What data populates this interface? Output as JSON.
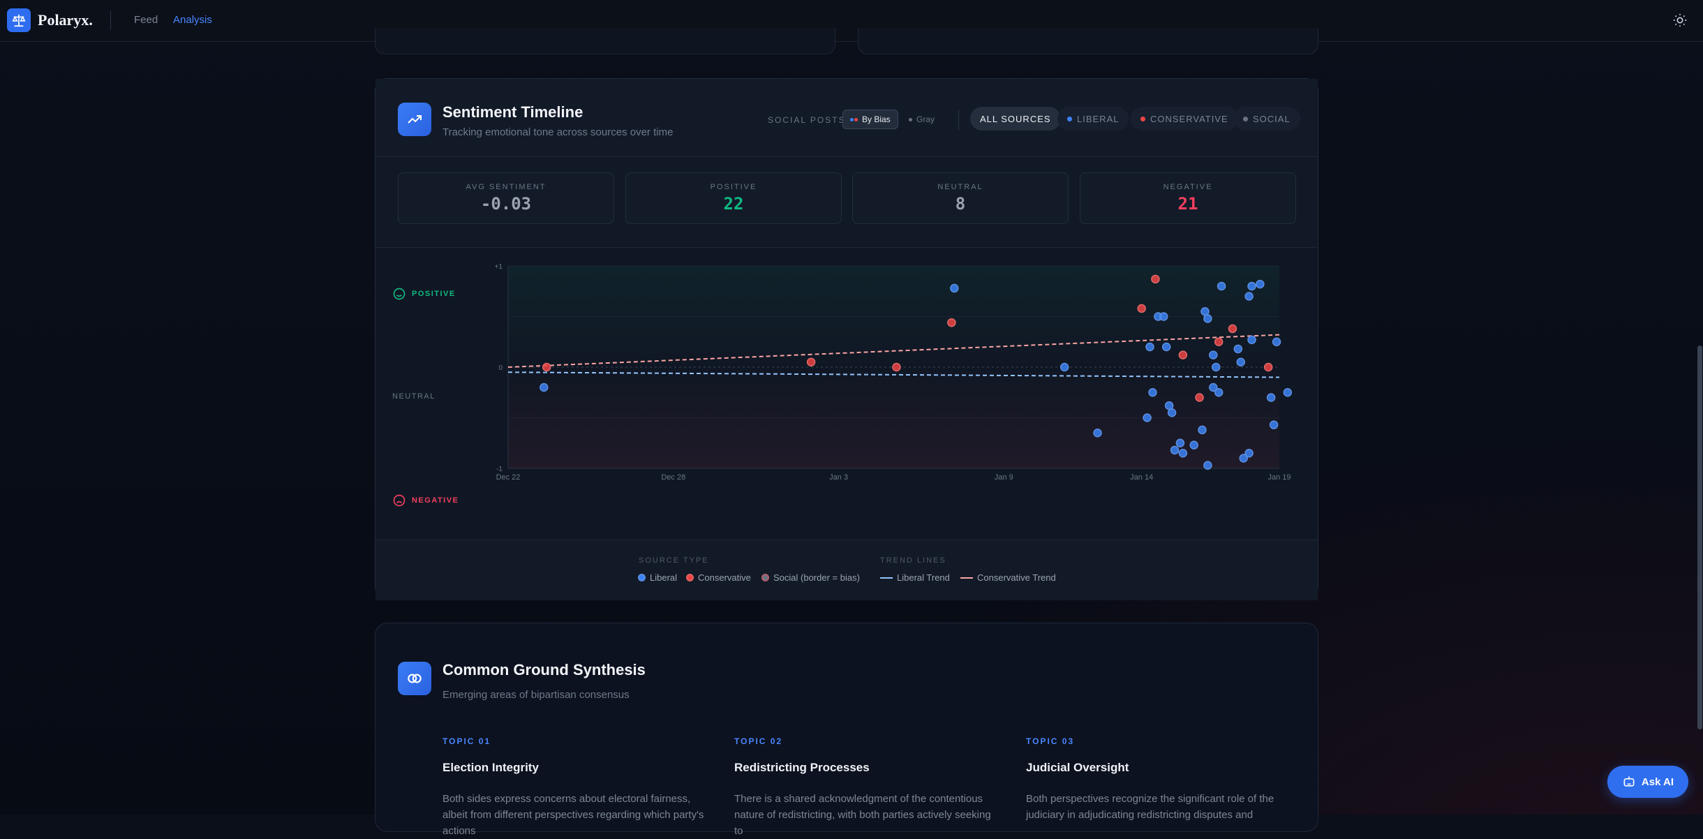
{
  "navbar": {
    "brand": "Polaryx.",
    "links": [
      {
        "label": "Feed",
        "active": false
      },
      {
        "label": "Analysis",
        "active": true
      }
    ]
  },
  "sentiment": {
    "title": "Sentiment Timeline",
    "subtitle": "Tracking emotional tone across sources over time",
    "social_posts_label": "SOCIAL POSTS:",
    "social_modes": [
      {
        "label": "By Bias",
        "active": true
      },
      {
        "label": "Gray",
        "active": false
      }
    ],
    "filters": [
      {
        "label": "ALL SOURCES",
        "active": true,
        "color": ""
      },
      {
        "label": "LIBERAL",
        "active": false,
        "color": "#3b82f6"
      },
      {
        "label": "CONSERVATIVE",
        "active": false,
        "color": "#ef4444"
      },
      {
        "label": "SOCIAL",
        "active": false,
        "color": "#6b7280"
      }
    ],
    "stats": [
      {
        "label": "AVG SENTIMENT",
        "value": "-0.03",
        "color": "#9ba3b0"
      },
      {
        "label": "POSITIVE",
        "value": "22",
        "color": "#10b981"
      },
      {
        "label": "NEUTRAL",
        "value": "8",
        "color": "#9ba3b0"
      },
      {
        "label": "NEGATIVE",
        "value": "21",
        "color": "#f43f5e"
      }
    ],
    "side_labels": {
      "positive": "POSITIVE",
      "neutral": "NEUTRAL",
      "negative": "NEGATIVE"
    },
    "legend": {
      "source_type_head": "SOURCE TYPE",
      "trend_lines_head": "TREND LINES",
      "liberal": "Liberal",
      "conservative": "Conservative",
      "social": "Social (border = bias)",
      "liberal_trend": "Liberal Trend",
      "conservative_trend": "Conservative Trend"
    }
  },
  "chart_data": {
    "type": "scatter",
    "title": "",
    "xlabel": "",
    "ylabel": "",
    "x_ticks": [
      "Dec 22",
      "Dec 28",
      "Jan 3",
      "Jan 9",
      "Jan 14",
      "Jan 19"
    ],
    "y_ticks": [
      "+1",
      "0",
      "-1"
    ],
    "xlim": [
      "Dec 22",
      "Jan 19"
    ],
    "ylim": [
      -1,
      1
    ],
    "grid": true,
    "colors": {
      "liberal": "#3b82f6",
      "conservative": "#ef4444",
      "liberal_trend": "#93c5fd",
      "conservative_trend": "#fca5a5"
    },
    "series": [
      {
        "name": "Liberal",
        "points": [
          [
            1.3,
            -0.2
          ],
          [
            16.2,
            0.78
          ],
          [
            20.2,
            0
          ],
          [
            21.4,
            -0.65
          ],
          [
            23.3,
            0.2
          ],
          [
            23.4,
            -0.25
          ],
          [
            23.2,
            -0.5
          ],
          [
            23.9,
            0.2
          ],
          [
            23.6,
            0.5
          ],
          [
            23.8,
            0.5
          ],
          [
            24.2,
            -0.82
          ],
          [
            24.5,
            -0.85
          ],
          [
            24.4,
            -0.75
          ],
          [
            24.9,
            -0.77
          ],
          [
            25.2,
            -0.62
          ],
          [
            25.3,
            0.55
          ],
          [
            25.4,
            0.48
          ],
          [
            25.6,
            0.12
          ],
          [
            25.6,
            -0.2
          ],
          [
            25.7,
            0
          ],
          [
            25.4,
            -0.97
          ],
          [
            25.8,
            -0.25
          ],
          [
            25.9,
            0.8
          ],
          [
            26.5,
            0.18
          ],
          [
            26.6,
            0.05
          ],
          [
            26.7,
            -0.9
          ],
          [
            26.9,
            0.7
          ],
          [
            27.0,
            0.8
          ],
          [
            26.9,
            -0.85
          ],
          [
            27.0,
            0.27
          ],
          [
            27.3,
            0.82
          ],
          [
            27.7,
            -0.3
          ],
          [
            27.8,
            -0.57
          ],
          [
            27.9,
            0.25
          ],
          [
            28.3,
            -0.25
          ],
          [
            24.0,
            -0.38
          ],
          [
            24.1,
            -0.45
          ]
        ]
      },
      {
        "name": "Conservative",
        "points": [
          [
            1.4,
            0
          ],
          [
            11.0,
            0.05
          ],
          [
            14.1,
            0
          ],
          [
            16.1,
            0.44
          ],
          [
            23.0,
            0.58
          ],
          [
            23.5,
            0.87
          ],
          [
            24.5,
            0.12
          ],
          [
            25.8,
            0.25
          ],
          [
            26.3,
            0.38
          ],
          [
            25.1,
            -0.3
          ],
          [
            27.6,
            0
          ]
        ]
      }
    ],
    "trend_lines": [
      {
        "name": "Liberal Trend",
        "from": [
          0,
          -0.05
        ],
        "to": [
          28,
          -0.1
        ]
      },
      {
        "name": "Conservative Trend",
        "from": [
          0,
          0
        ],
        "to": [
          28,
          0.32
        ]
      }
    ]
  },
  "common_ground": {
    "title": "Common Ground Synthesis",
    "subtitle": "Emerging areas of bipartisan consensus",
    "topics": [
      {
        "num": "TOPIC 01",
        "title": "Election Integrity",
        "text": "Both sides express concerns about electoral fairness, albeit from different perspectives regarding which party's actions"
      },
      {
        "num": "TOPIC 02",
        "title": "Redistricting Processes",
        "text": "There is a shared acknowledgment of the contentious nature of redistricting, with both parties actively seeking to"
      },
      {
        "num": "TOPIC 03",
        "title": "Judicial Oversight",
        "text": "Both perspectives recognize the significant role of the judiciary in adjudicating redistricting disputes and"
      }
    ]
  },
  "ask_ai": {
    "label": "Ask AI"
  }
}
